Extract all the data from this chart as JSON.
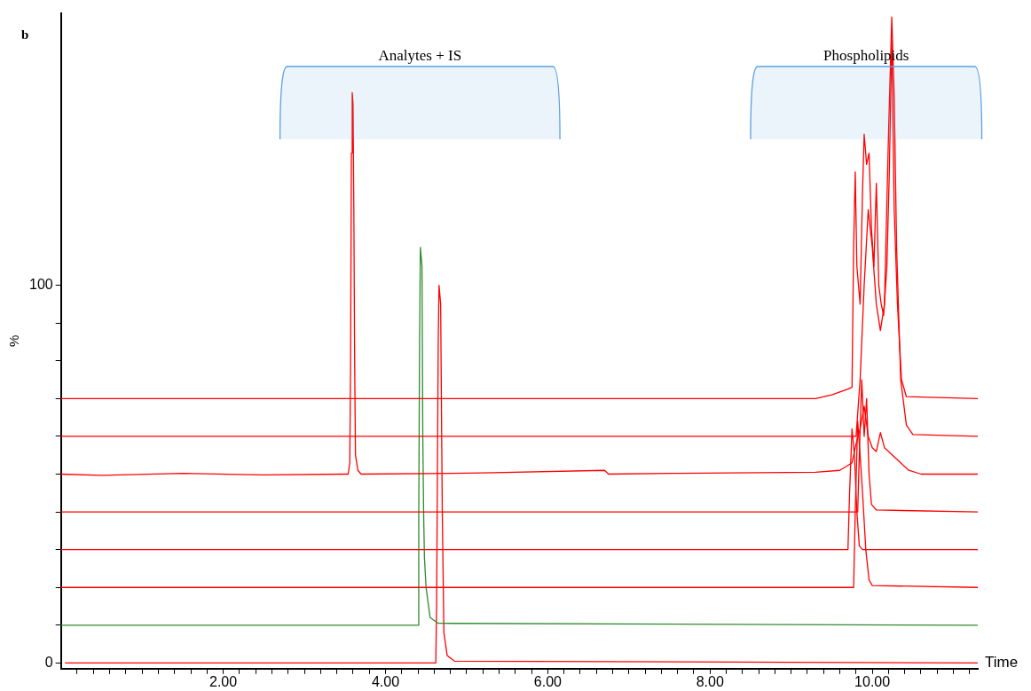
{
  "chart_data": {
    "type": "line",
    "title": "b",
    "xlabel": "Time",
    "ylabel": "%",
    "xlim": [
      0,
      11.3
    ],
    "ylim": [
      -1.5,
      172
    ],
    "xticks": [
      {
        "value": 0.2,
        "label": null
      },
      {
        "value": 0.4,
        "label": null
      },
      {
        "value": 0.6,
        "label": null
      },
      {
        "value": 0.8,
        "label": null
      },
      {
        "value": 1,
        "label": null
      },
      {
        "value": 1.2,
        "label": null
      },
      {
        "value": 1.4,
        "label": null
      },
      {
        "value": 1.6,
        "label": null
      },
      {
        "value": 1.8,
        "label": null
      },
      {
        "value": 2,
        "label": "2.00"
      },
      {
        "value": 2.2,
        "label": null
      },
      {
        "value": 2.4,
        "label": null
      },
      {
        "value": 2.6,
        "label": null
      },
      {
        "value": 2.8,
        "label": null
      },
      {
        "value": 3,
        "label": null
      },
      {
        "value": 3.2,
        "label": null
      },
      {
        "value": 3.4,
        "label": null
      },
      {
        "value": 3.6,
        "label": null
      },
      {
        "value": 3.8,
        "label": null
      },
      {
        "value": 4,
        "label": "4.00"
      },
      {
        "value": 4.2,
        "label": null
      },
      {
        "value": 4.4,
        "label": null
      },
      {
        "value": 4.6,
        "label": null
      },
      {
        "value": 4.8,
        "label": null
      },
      {
        "value": 5,
        "label": null
      },
      {
        "value": 5.2,
        "label": null
      },
      {
        "value": 5.4,
        "label": null
      },
      {
        "value": 5.6,
        "label": null
      },
      {
        "value": 5.8,
        "label": null
      },
      {
        "value": 6,
        "label": "6.00"
      },
      {
        "value": 6.2,
        "label": null
      },
      {
        "value": 6.4,
        "label": null
      },
      {
        "value": 6.6,
        "label": null
      },
      {
        "value": 6.8,
        "label": null
      },
      {
        "value": 7,
        "label": null
      },
      {
        "value": 7.2,
        "label": null
      },
      {
        "value": 7.4,
        "label": null
      },
      {
        "value": 7.6,
        "label": null
      },
      {
        "value": 7.8,
        "label": null
      },
      {
        "value": 8,
        "label": "8.00"
      },
      {
        "value": 8.2,
        "label": null
      },
      {
        "value": 8.4,
        "label": null
      },
      {
        "value": 8.6,
        "label": null
      },
      {
        "value": 8.8,
        "label": null
      },
      {
        "value": 9,
        "label": null
      },
      {
        "value": 9.2,
        "label": null
      },
      {
        "value": 9.4,
        "label": null
      },
      {
        "value": 9.6,
        "label": null
      },
      {
        "value": 9.8,
        "label": null
      },
      {
        "value": 10,
        "label": "10.00"
      },
      {
        "value": 10.2,
        "label": null
      },
      {
        "value": 10.4,
        "label": null
      },
      {
        "value": 10.6,
        "label": null
      },
      {
        "value": 10.8,
        "label": null
      },
      {
        "value": 11,
        "label": null
      },
      {
        "value": 11.2,
        "label": null
      }
    ],
    "yticks": [
      0,
      {
        "value": 10,
        "label": null
      },
      {
        "value": 20,
        "label": null
      },
      {
        "value": 30,
        "label": null
      },
      {
        "value": 40,
        "label": null
      },
      {
        "value": 50,
        "label": null
      },
      {
        "value": 60,
        "label": null
      },
      {
        "value": 70,
        "label": null
      },
      {
        "value": 80,
        "label": null
      },
      {
        "value": 90,
        "label": null
      },
      100
    ],
    "grid": false,
    "legend": false,
    "marker": "none",
    "line_style": "solid",
    "bands": [
      {
        "axis": "x",
        "from": 2.7,
        "to": 6.15,
        "label": "Analytes + IS",
        "color": "#5aa0e0"
      },
      {
        "axis": "x",
        "from": 8.5,
        "to": 11.35,
        "label": "Phospholipids",
        "color": "#5aa0e0"
      }
    ],
    "series": [
      {
        "color": "#ff0000",
        "x": [
          0,
          9.3,
          9.5,
          9.7,
          9.75,
          9.77,
          9.79,
          9.81,
          9.85,
          9.88,
          9.9,
          9.93,
          9.96,
          9.99,
          10.02,
          10.05,
          10.08,
          10.11,
          10.14,
          10.18,
          10.21,
          10.24,
          10.27,
          10.31,
          10.36,
          10.42,
          11.3
        ],
        "values": [
          70,
          70,
          71,
          72.5,
          73,
          110,
          130,
          105,
          95,
          125,
          140,
          132,
          135,
          115,
          105,
          127,
          100,
          95,
          92,
          105,
          130,
          165,
          120,
          95,
          75,
          70.5,
          70
        ]
      },
      {
        "color": "#ff0000",
        "x": [
          0,
          9.8,
          9.85,
          9.9,
          9.95,
          10,
          10.05,
          10.1,
          10.15,
          10.2,
          10.24,
          10.27,
          10.3,
          10.35,
          10.42,
          10.5,
          11.3
        ],
        "values": [
          60,
          60,
          75,
          100,
          120,
          110,
          95,
          88,
          95,
          140,
          171,
          150,
          110,
          75,
          63,
          60.5,
          60
        ]
      },
      {
        "color": "#ff0000",
        "x": [
          0,
          0.5,
          1.5,
          2.5,
          3.5,
          3.54,
          3.56,
          3.57,
          3.58,
          3.59,
          3.6,
          3.61,
          3.62,
          3.63,
          3.66,
          3.7,
          5.2,
          6.7,
          6.75,
          7.5,
          9.3,
          9.6,
          9.75,
          9.8,
          9.85,
          9.9,
          9.95,
          10,
          10.05,
          10.1,
          10.15,
          10.25,
          10.35,
          10.45,
          10.6,
          11.3
        ],
        "values": [
          50,
          49.7,
          50.2,
          49.8,
          50,
          50,
          53,
          80,
          135,
          151,
          148,
          120,
          80,
          55,
          51,
          50,
          50.3,
          51,
          50,
          50.2,
          50.5,
          51,
          53,
          58,
          62,
          68,
          60,
          57,
          56,
          61,
          57,
          55,
          53,
          51,
          50,
          50
        ]
      },
      {
        "color": "#ff0000",
        "x": [
          0,
          9.82,
          9.84,
          9.87,
          9.9,
          9.93,
          9.96,
          9.99,
          10.05,
          11.3
        ],
        "values": [
          40,
          40,
          55,
          75,
          60,
          70,
          50,
          42,
          40.5,
          40
        ]
      },
      {
        "color": "#ff0000",
        "x": [
          0,
          9.7,
          9.72,
          9.75,
          9.78,
          9.81,
          9.84,
          9.88,
          11.3
        ],
        "values": [
          30,
          30,
          45,
          62,
          55,
          40,
          31,
          30,
          30
        ]
      },
      {
        "color": "#ff0000",
        "x": [
          0,
          9.77,
          9.79,
          9.82,
          9.85,
          9.88,
          9.92,
          9.96,
          10,
          11.3
        ],
        "values": [
          20,
          20,
          40,
          64,
          55,
          45,
          30,
          22,
          20.5,
          20
        ]
      },
      {
        "color": "#2e8b2e",
        "x": [
          0,
          4.4,
          4.41,
          4.42,
          4.43,
          4.45,
          4.46,
          4.47,
          4.48,
          4.5,
          4.55,
          4.65,
          11.3
        ],
        "values": [
          10,
          10,
          38,
          85,
          110,
          105,
          60,
          40,
          28,
          20,
          12,
          10.5,
          10
        ]
      },
      {
        "color": "#ff0000",
        "x": [
          0.05,
          4.62,
          4.63,
          4.65,
          4.66,
          4.68,
          4.7,
          4.72,
          4.76,
          4.85,
          11.3
        ],
        "values": [
          0,
          0,
          15,
          85,
          100,
          95,
          40,
          8,
          2,
          0.5,
          0
        ]
      }
    ]
  }
}
